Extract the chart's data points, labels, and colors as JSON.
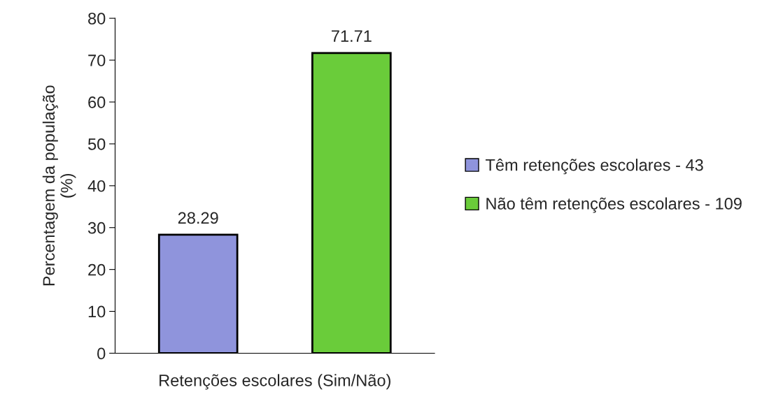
{
  "chart_data": {
    "type": "bar",
    "xlabel": "Retenções escolares (Sim/Não)",
    "ylabel": "Percentagem da população\n(%)",
    "categories": [
      null
    ],
    "series": [
      {
        "name": "Têm retenções escolares - 43",
        "color": "#8f94dc",
        "values": [
          28.29
        ]
      },
      {
        "name": "Não têm retenções escolares - 109",
        "color": "#6acc3a",
        "values": [
          71.71
        ]
      }
    ],
    "ylim": [
      0,
      80
    ],
    "yticks": [
      0,
      10,
      20,
      30,
      40,
      50,
      60,
      70,
      80
    ],
    "grid": false,
    "legend": "right",
    "data_labels": true
  }
}
